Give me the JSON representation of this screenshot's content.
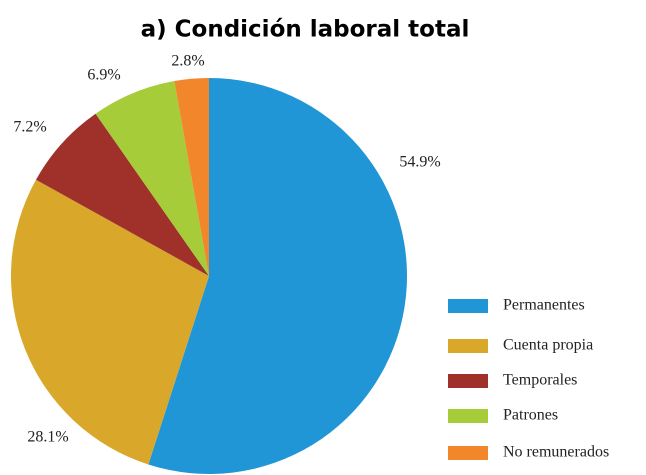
{
  "chart_data": {
    "type": "pie",
    "title": "a) Condición laboral total",
    "categories": [
      "Permanentes",
      "Cuenta propia",
      "Temporales",
      "Patrones",
      "No remunerados"
    ],
    "values": [
      54.9,
      28.1,
      7.2,
      6.9,
      2.8
    ],
    "value_labels": [
      "54.9%",
      "28.1%",
      "7.2%",
      "6.9%",
      "2.8%"
    ],
    "colors": [
      "#2196d6",
      "#d9a72a",
      "#a0302a",
      "#a6cc3a",
      "#f2862a"
    ],
    "legend": "right"
  }
}
